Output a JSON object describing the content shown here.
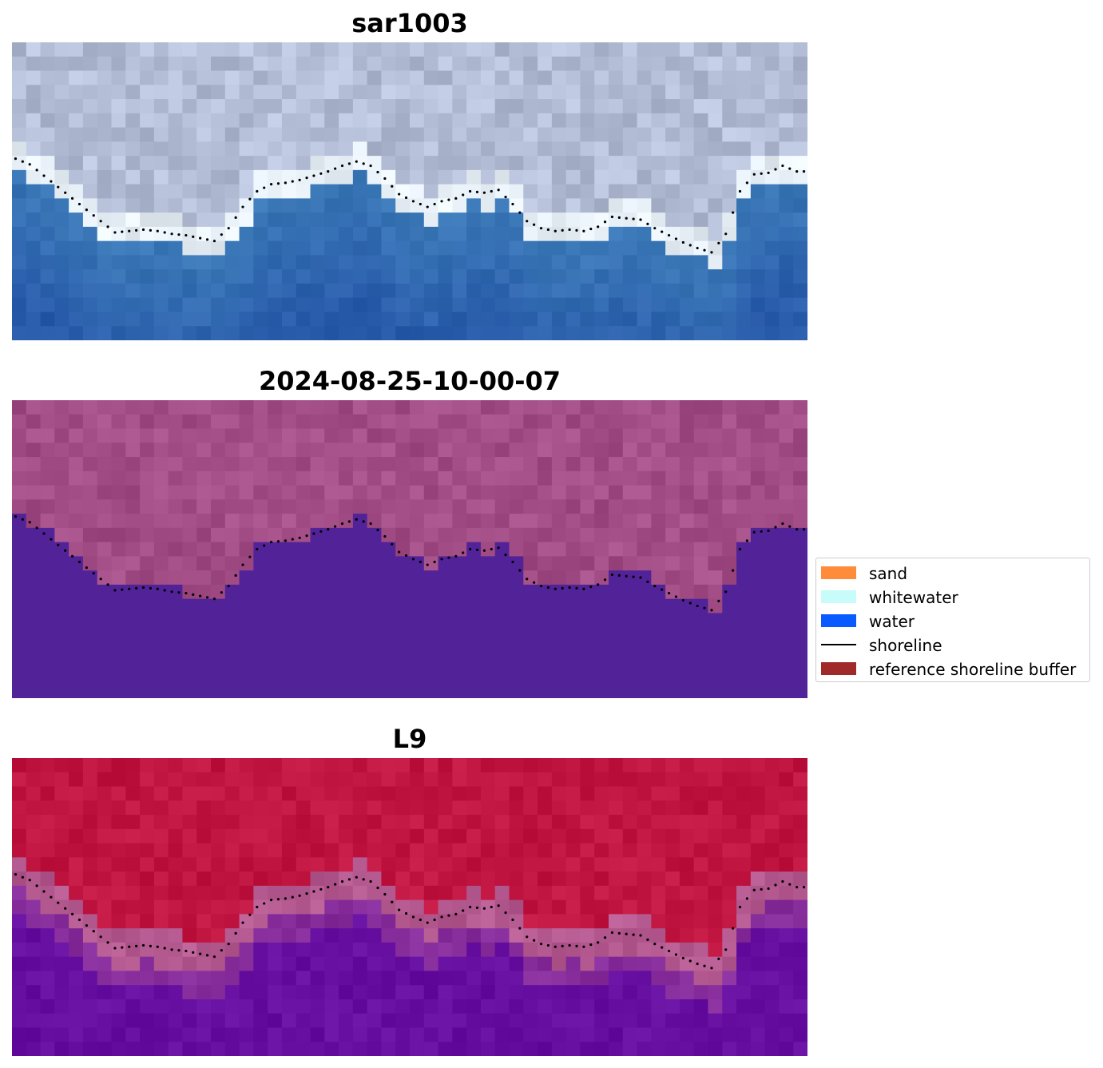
{
  "chart_data": {
    "type": "heatmap",
    "panels": [
      {
        "title": "sar1003",
        "content": "RGB satellite image with detected shoreline"
      },
      {
        "title": "2024-08-25-10-00-07",
        "content": "classified image with detected shoreline"
      },
      {
        "title": "L9",
        "content": "water index image with detected shoreline"
      }
    ],
    "grid": {
      "columns": 56,
      "rows": 21
    },
    "shoreline_row_by_column": [
      8.2,
      8.6,
      9.4,
      10.2,
      11.0,
      11.8,
      12.6,
      13.4,
      13.3,
      13.2,
      13.3,
      13.5,
      13.6,
      13.8,
      14.0,
      13.1,
      11.6,
      10.5,
      10.0,
      9.9,
      9.7,
      9.4,
      9.1,
      8.7,
      8.4,
      8.7,
      9.6,
      10.7,
      11.2,
      11.6,
      11.2,
      11.0,
      10.5,
      10.6,
      10.4,
      11.4,
      12.6,
      13.1,
      13.3,
      13.2,
      13.3,
      13.0,
      12.3,
      12.4,
      12.5,
      13.1,
      13.6,
      14.1,
      14.5,
      14.8,
      13.5,
      10.5,
      9.3,
      9.2,
      8.7,
      9.1
    ],
    "legend": {
      "position": "right",
      "items": [
        {
          "label": "sand",
          "color": "#ff8c3a",
          "kind": "patch"
        },
        {
          "label": "whitewater",
          "color": "#c8fcfa",
          "kind": "patch"
        },
        {
          "label": "water",
          "color": "#0a5bff",
          "kind": "patch"
        },
        {
          "label": "shoreline",
          "color": "#000000",
          "kind": "line"
        },
        {
          "label": "reference shoreline buffer",
          "color": "#a02a2a",
          "kind": "patch"
        }
      ]
    },
    "panel_colors": {
      "rgb_land": "#b3bdd6",
      "rgb_foam": "#e6eef5",
      "rgb_water": "#3c7ab8",
      "class_land": "#a24d86",
      "class_water": "#522398",
      "index_land": "#c01540",
      "index_edge": "#b45a90",
      "index_water": "#650ea0"
    },
    "grid_on": false
  }
}
